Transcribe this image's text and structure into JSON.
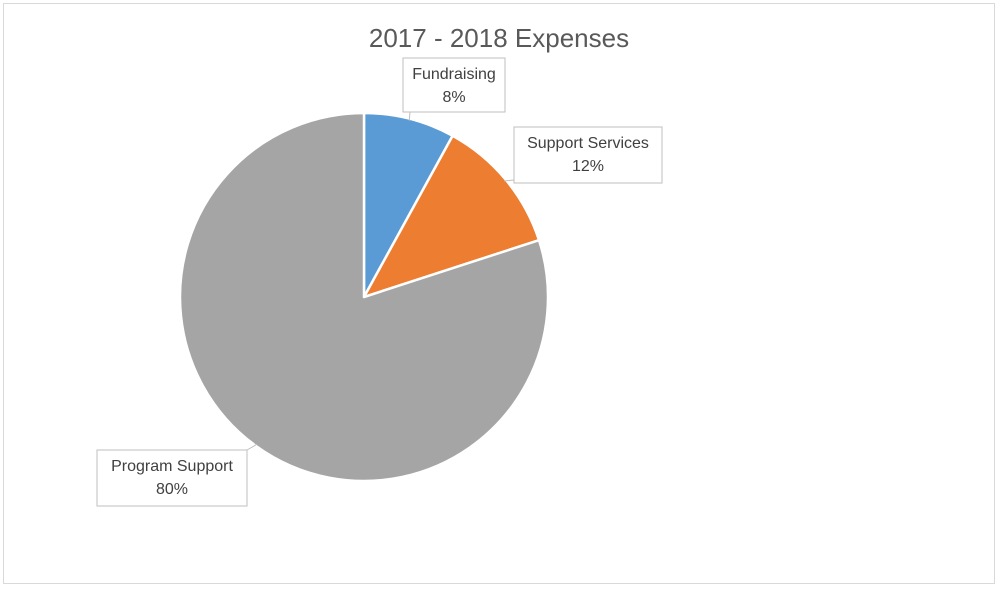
{
  "chart_data": {
    "type": "pie",
    "title": "2017 - 2018 Expenses",
    "slices": [
      {
        "label": "Fundraising",
        "value": 8,
        "value_label": "8%",
        "color": "#5b9bd5"
      },
      {
        "label": "Support Services",
        "value": 12,
        "value_label": "12%",
        "color": "#ed7d31"
      },
      {
        "label": "Program Support",
        "value": 80,
        "value_label": "80%",
        "color": "#a5a5a5"
      }
    ],
    "start_angle": "12 o'clock",
    "direction": "clockwise",
    "legend": "none",
    "slice_border_color": "#ffffff",
    "label_style": "callouts"
  }
}
